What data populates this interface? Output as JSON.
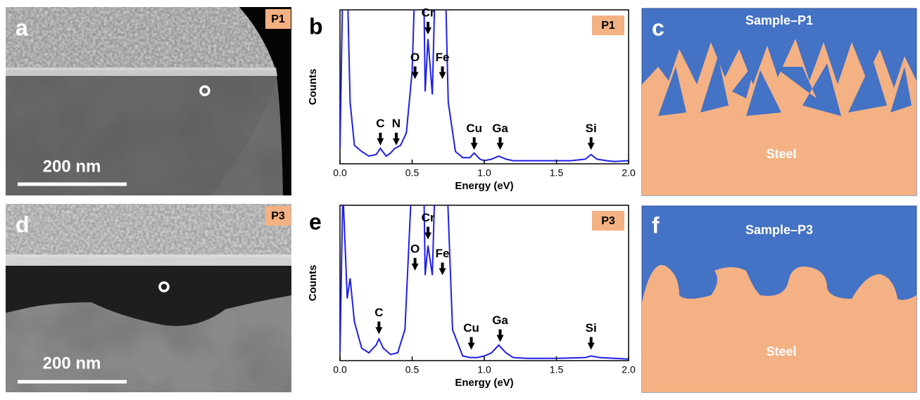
{
  "panels": [
    {
      "letter": "a",
      "tag": "P1",
      "scale_bar": "200 nm"
    },
    {
      "letter": "d",
      "tag": "P3",
      "scale_bar": "200 nm"
    }
  ],
  "schematics": [
    {
      "letter": "c",
      "top": "Sample–P1",
      "bottom": "Steel"
    },
    {
      "letter": "f",
      "top": "Sample–P3",
      "bottom": "Steel"
    }
  ],
  "chart_data": [
    {
      "type": "line",
      "letter": "b",
      "tag": "P1",
      "x_label": "Energy (eV)",
      "y_label": "Counts",
      "color": "#1f1fe6",
      "x": [
        0.0,
        0.02,
        0.05,
        0.07,
        0.1,
        0.15,
        0.2,
        0.25,
        0.28,
        0.32,
        0.35,
        0.38,
        0.42,
        0.46,
        0.5,
        0.52,
        0.58,
        0.59,
        0.61,
        0.64,
        0.66,
        0.73,
        0.75,
        0.8,
        0.85,
        0.9,
        0.93,
        0.97,
        1.0,
        1.05,
        1.1,
        1.15,
        1.2,
        1.3,
        1.4,
        1.5,
        1.6,
        1.7,
        1.74,
        1.78,
        1.85,
        1.9,
        2.0
      ],
      "values": [
        10,
        120,
        120,
        40,
        12,
        8,
        5,
        6,
        10,
        5,
        7,
        10,
        12,
        20,
        60,
        120,
        120,
        47,
        81,
        45,
        120,
        120,
        40,
        8,
        4,
        4,
        7,
        3,
        2,
        3,
        5,
        3,
        2,
        2,
        2,
        2,
        2,
        3,
        6,
        3,
        2,
        1.5,
        2
      ],
      "xlim": [
        0,
        2
      ],
      "ylim": [
        0,
        100
      ],
      "xticks": [
        {
          "value": 0,
          "label": "0.0"
        },
        {
          "value": 0.5,
          "label": "0.5"
        },
        {
          "value": 1,
          "label": "1.0"
        },
        {
          "value": 1.5,
          "label": "1.5"
        },
        {
          "value": 2,
          "label": "2.0"
        }
      ],
      "annotations": [
        {
          "text": "C",
          "x": 0.28,
          "y": 12
        },
        {
          "text": "N",
          "x": 0.39,
          "y": 12
        },
        {
          "text": "O",
          "x": 0.52,
          "y": 55
        },
        {
          "text": "Cr",
          "x": 0.61,
          "y": 84
        },
        {
          "text": "Fe",
          "x": 0.71,
          "y": 55
        },
        {
          "text": "Cu",
          "x": 0.93,
          "y": 9
        },
        {
          "text": "Ga",
          "x": 1.11,
          "y": 9
        },
        {
          "text": "Si",
          "x": 1.74,
          "y": 9
        }
      ]
    },
    {
      "type": "line",
      "letter": "e",
      "tag": "P3",
      "x_label": "Energy (eV)",
      "y_label": "Counts",
      "color": "#1f1fe6",
      "x": [
        0.0,
        0.02,
        0.05,
        0.07,
        0.1,
        0.15,
        0.2,
        0.25,
        0.27,
        0.3,
        0.35,
        0.4,
        0.45,
        0.5,
        0.58,
        0.59,
        0.61,
        0.64,
        0.66,
        0.74,
        0.78,
        0.85,
        0.9,
        0.95,
        1.0,
        1.05,
        1.1,
        1.15,
        1.2,
        1.3,
        1.5,
        1.7,
        1.74,
        1.8,
        2.0
      ],
      "values": [
        5,
        110,
        40,
        53,
        25,
        8,
        5,
        10,
        14,
        8,
        4,
        5,
        20,
        120,
        120,
        55,
        74,
        55,
        120,
        120,
        20,
        3,
        2,
        2,
        3,
        5,
        10,
        5,
        2,
        1.5,
        1.5,
        2,
        3,
        2,
        1
      ],
      "xlim": [
        0,
        2
      ],
      "ylim": [
        0,
        100
      ],
      "xticks": [
        {
          "value": 0,
          "label": "0.0"
        },
        {
          "value": 0.5,
          "label": "0.5"
        },
        {
          "value": 1,
          "label": "1.0"
        },
        {
          "value": 1.5,
          "label": "1.5"
        },
        {
          "value": 2,
          "label": "2.0"
        }
      ],
      "annotations": [
        {
          "text": "C",
          "x": 0.27,
          "y": 17
        },
        {
          "text": "O",
          "x": 0.52,
          "y": 58
        },
        {
          "text": "Cr",
          "x": 0.61,
          "y": 78
        },
        {
          "text": "Fe",
          "x": 0.71,
          "y": 55
        },
        {
          "text": "Cu",
          "x": 0.91,
          "y": 7
        },
        {
          "text": "Ga",
          "x": 1.11,
          "y": 12
        },
        {
          "text": "Si",
          "x": 1.74,
          "y": 7
        }
      ]
    }
  ]
}
